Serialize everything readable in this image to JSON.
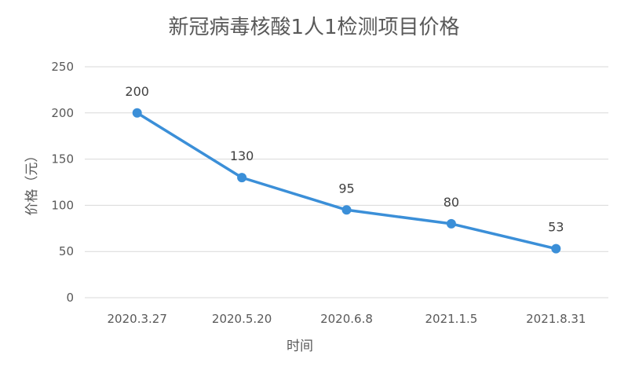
{
  "chart_data": {
    "type": "line",
    "title": "新冠病毒核酸1人1检测项目价格",
    "xlabel": "时间",
    "ylabel": "价格（元）",
    "categories": [
      "2020.3.27",
      "2020.5.20",
      "2020.6.8",
      "2021.1.5",
      "2021.8.31"
    ],
    "series": [
      {
        "values": [
          200,
          130,
          95,
          80,
          53
        ]
      }
    ],
    "data_labels": [
      "200",
      "130",
      "95",
      "80",
      "53"
    ],
    "ylim": [
      0,
      250
    ],
    "yticks": [
      "0",
      "50",
      "100",
      "150",
      "200",
      "250"
    ],
    "grid": true,
    "legend": "none",
    "colors": {
      "line": "#3b8fd8",
      "grid": "#d9d9d9",
      "text": "#595959"
    }
  }
}
